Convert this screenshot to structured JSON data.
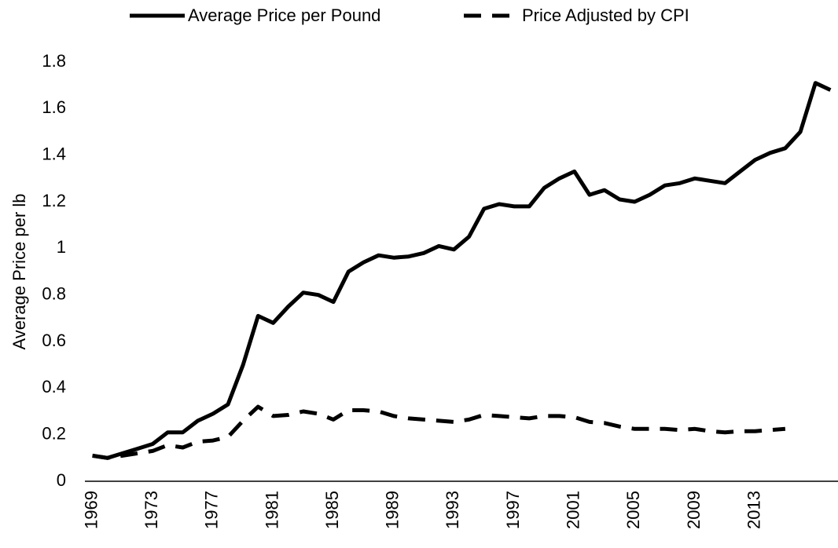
{
  "chart_data": {
    "type": "line",
    "y_label": "Average Price per lb",
    "categories": [
      "1969",
      null,
      null,
      null,
      "1973",
      null,
      null,
      null,
      "1977",
      null,
      null,
      null,
      "1981",
      null,
      null,
      null,
      "1985",
      null,
      null,
      null,
      "1989",
      null,
      null,
      null,
      "1993",
      null,
      null,
      null,
      "1997",
      null,
      null,
      null,
      "2001",
      null,
      null,
      null,
      "2005",
      null,
      null,
      null,
      "2009",
      null,
      null,
      null,
      "2013",
      null,
      null,
      null,
      null,
      null
    ],
    "series": [
      {
        "name": "Average Price per Pound",
        "color": "#000000",
        "dash": "solid",
        "values": [
          0.11,
          0.1,
          0.12,
          0.14,
          0.16,
          0.21,
          0.21,
          0.26,
          0.29,
          0.33,
          0.5,
          0.71,
          0.68,
          0.75,
          0.81,
          0.8,
          0.77,
          0.9,
          0.94,
          0.97,
          0.96,
          0.965,
          0.98,
          1.01,
          0.995,
          1.05,
          1.17,
          1.19,
          1.18,
          1.18,
          1.26,
          1.3,
          1.33,
          1.23,
          1.25,
          1.21,
          1.2,
          1.23,
          1.27,
          1.28,
          1.3,
          1.29,
          1.28,
          1.33,
          1.38,
          1.41,
          1.43,
          1.5,
          1.71,
          1.68
        ]
      },
      {
        "name": "Price Adjusted by CPI",
        "color": "#000000",
        "dash": "dashed",
        "values": [
          0.11,
          0.1,
          0.11,
          0.12,
          0.13,
          0.155,
          0.145,
          0.17,
          0.175,
          0.19,
          0.26,
          0.32,
          0.28,
          0.285,
          0.3,
          0.29,
          0.265,
          0.305,
          0.305,
          0.3,
          0.28,
          0.27,
          0.265,
          0.26,
          0.255,
          0.265,
          0.285,
          0.28,
          0.275,
          0.27,
          0.28,
          0.28,
          0.275,
          0.255,
          0.25,
          0.235,
          0.225,
          0.225,
          0.225,
          0.22,
          0.225,
          0.215,
          0.21,
          0.215,
          0.215,
          0.22,
          0.225,
          null,
          null,
          null
        ]
      }
    ],
    "ylim": [
      0,
      1.8
    ],
    "yticks": [
      0,
      0.2,
      0.4,
      0.6,
      0.8,
      1,
      1.2,
      1.4,
      1.6,
      1.8
    ],
    "grid": false,
    "legend": "top"
  }
}
